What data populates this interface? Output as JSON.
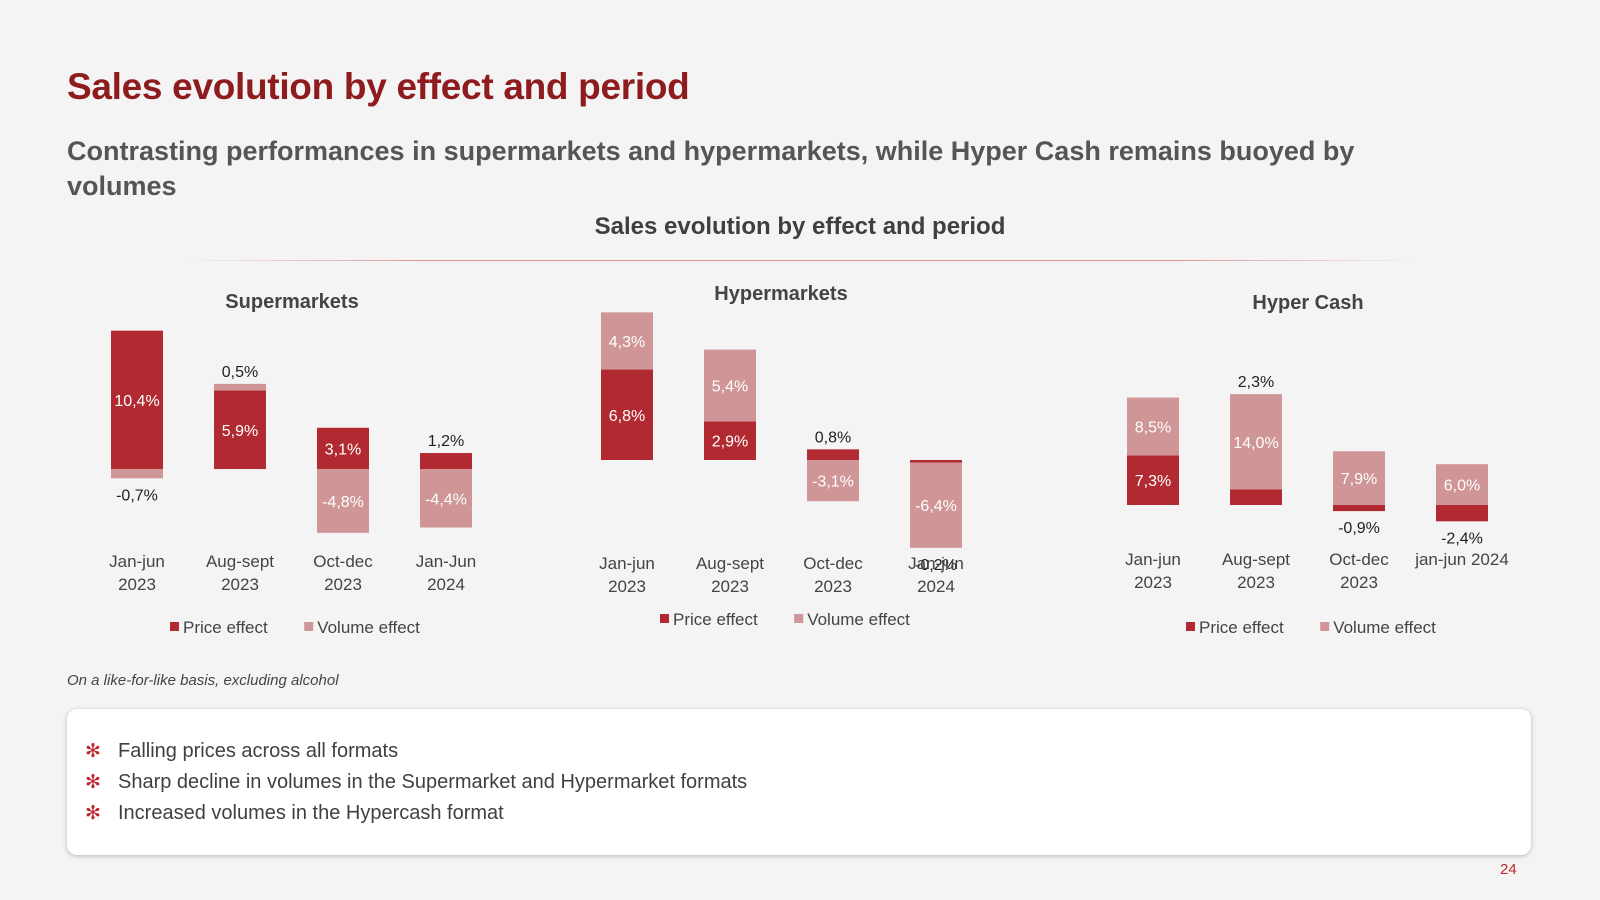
{
  "title": "Sales evolution by effect and period",
  "subtitle": "Contrasting performances in supermarkets and hypermarkets, while Hyper Cash remains buoyed by volumes",
  "chart_heading": "Sales evolution by effect and period",
  "colors": {
    "price": "#b22a31",
    "volume": "#cf9597",
    "title": "#8e1b1e",
    "accent": "#c0272d"
  },
  "chart_data": [
    {
      "type": "bar",
      "stacked": true,
      "title": "Supermarkets",
      "categories": [
        [
          "Jan-jun",
          "2023"
        ],
        [
          "Aug-sept",
          "2023"
        ],
        [
          "Oct-dec",
          "2023"
        ],
        [
          "Jan-Jun",
          "2024"
        ]
      ],
      "series": [
        {
          "name": "Price effect",
          "values": [
            10.4,
            5.9,
            3.1,
            1.2
          ],
          "labels": [
            "10,4%",
            "5,9%",
            "3,1%",
            "1,2%"
          ]
        },
        {
          "name": "Volume effect",
          "values": [
            -0.7,
            0.5,
            -4.8,
            -4.4
          ],
          "labels": [
            "-0,7%",
            "0,5%",
            "-4,8%",
            "-4,4%"
          ]
        }
      ],
      "legend": "bottom"
    },
    {
      "type": "bar",
      "stacked": true,
      "title": "Hypermarkets",
      "categories": [
        [
          "Jan-jun",
          "2023"
        ],
        [
          "Aug-sept",
          "2023"
        ],
        [
          "Oct-dec",
          "2023"
        ],
        [
          "Jan-jun",
          "2024"
        ]
      ],
      "series": [
        {
          "name": "Price effect",
          "values": [
            6.8,
            2.9,
            0.8,
            -0.2
          ],
          "labels": [
            "6,8%",
            "2,9%",
            "0,8%",
            "-0,2%"
          ]
        },
        {
          "name": "Volume effect",
          "values": [
            4.3,
            5.4,
            -3.1,
            -6.4
          ],
          "labels": [
            "4,3%",
            "5,4%",
            "-3,1%",
            "-6,4%"
          ]
        }
      ],
      "legend": "bottom"
    },
    {
      "type": "bar",
      "stacked": true,
      "title": "Hyper Cash",
      "categories": [
        [
          "Jan-jun",
          "2023"
        ],
        [
          "Aug-sept",
          "2023"
        ],
        [
          "Oct-dec",
          "2023"
        ],
        [
          "jan-jun 2024"
        ]
      ],
      "series": [
        {
          "name": "Price effect",
          "values": [
            7.3,
            2.3,
            -0.9,
            -2.4
          ],
          "labels": [
            "7,3%",
            "2,3%",
            "-0,9%",
            "-2,4%"
          ]
        },
        {
          "name": "Volume effect",
          "values": [
            8.5,
            14.0,
            7.9,
            6.0
          ],
          "labels": [
            "8,5%",
            "14,0%",
            "7,9%",
            "6,0%"
          ]
        }
      ],
      "legend": "bottom"
    }
  ],
  "footnote": "On a like-for-like basis, excluding alcohol",
  "notes": [
    {
      "bullet_icon": "asterisk-flower-icon",
      "text": "Falling prices across all formats"
    },
    {
      "bullet_icon": "asterisk-flower-icon",
      "text": "Sharp decline in volumes in the Supermarket and Hypermarket formats"
    },
    {
      "bullet_icon": "asterisk-flower-icon",
      "text": "Increased volumes in the Hypercash format"
    }
  ],
  "page_number": "24"
}
